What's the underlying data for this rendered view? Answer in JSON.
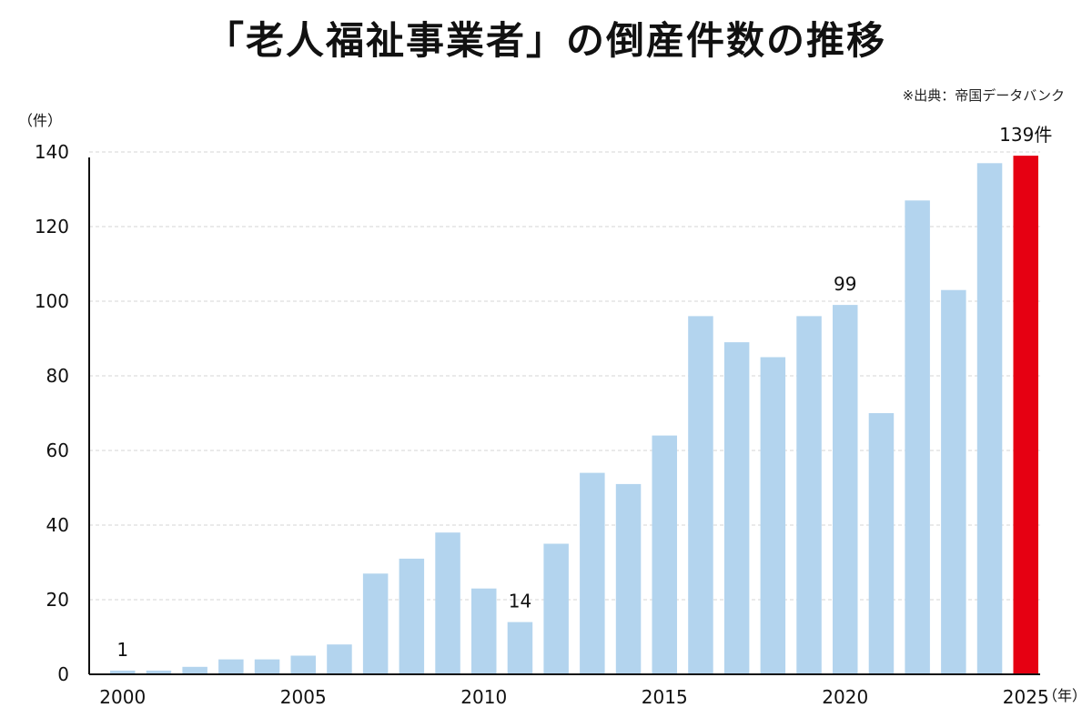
{
  "title": "「老人福祉事業者」の倒産件数の推移",
  "source": "※出典：帝国データバンク",
  "chart_data": {
    "type": "bar",
    "title": "「老人福祉事業者」の倒産件数の推移",
    "ylabel": "（件）",
    "xunit": "（年）",
    "ylim": [
      0,
      140
    ],
    "yticks": [
      0,
      20,
      40,
      60,
      80,
      100,
      120,
      140
    ],
    "xtick_labels": [
      "2000",
      "2005",
      "2010",
      "2015",
      "2020",
      "2025"
    ],
    "categories": [
      "2000",
      "2001",
      "2002",
      "2003",
      "2004",
      "2005",
      "2006",
      "2007",
      "2008",
      "2009",
      "2010",
      "2011",
      "2012",
      "2013",
      "2014",
      "2015",
      "2016",
      "2017",
      "2018",
      "2019",
      "2020",
      "2021",
      "2022",
      "2023",
      "2024",
      "2025"
    ],
    "values": [
      1,
      1,
      2,
      4,
      4,
      5,
      8,
      27,
      31,
      38,
      23,
      14,
      35,
      54,
      51,
      64,
      96,
      89,
      85,
      96,
      99,
      70,
      127,
      103,
      137,
      139
    ],
    "data_labels": [
      {
        "index": 0,
        "text": "1"
      },
      {
        "index": 11,
        "text": "14"
      },
      {
        "index": 20,
        "text": "99"
      },
      {
        "index": 25,
        "text": "139件"
      }
    ],
    "colors": {
      "bar": "#b3d4ee",
      "highlight": "#e60012"
    },
    "highlight_index": 25,
    "grid": true
  }
}
